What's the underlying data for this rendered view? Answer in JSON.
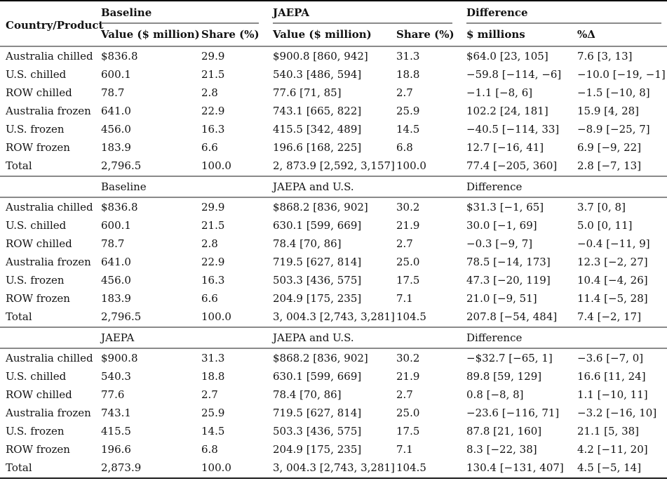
{
  "table": {
    "header": {
      "country_product": "Country/Product",
      "groups": [
        {
          "label": "Baseline",
          "subcols": [
            "Value ($ million)",
            "Share (%)"
          ]
        },
        {
          "label": "JAEPA",
          "subcols": [
            "Value ($ million)",
            "Share (%)"
          ]
        },
        {
          "label": "Difference",
          "subcols": [
            "$ millions",
            "%Δ"
          ]
        }
      ]
    },
    "sections": [
      {
        "scenario_labels": null,
        "rows": [
          {
            "label": "Australia chilled",
            "cells": [
              "$836.8",
              "29.9",
              "$900.8 [860, 942]",
              "31.3",
              "$64.0 [23, 105]",
              "7.6 [3, 13]"
            ]
          },
          {
            "label": "U.S. chilled",
            "cells": [
              "600.1",
              "21.5",
              "540.3 [486, 594]",
              "18.8",
              "−59.8 [−114, −6]",
              "−10.0 [−19, −1]"
            ]
          },
          {
            "label": "ROW chilled",
            "cells": [
              "78.7",
              "2.8",
              "77.6 [71, 85]",
              "2.7",
              "−1.1 [−8, 6]",
              "−1.5 [−10, 8]"
            ]
          },
          {
            "label": "Australia frozen",
            "cells": [
              "641.0",
              "22.9",
              "743.1 [665, 822]",
              "25.9",
              "102.2 [24, 181]",
              "15.9 [4, 28]"
            ]
          },
          {
            "label": "U.S. frozen",
            "cells": [
              "456.0",
              "16.3",
              "415.5 [342, 489]",
              "14.5",
              "−40.5 [−114, 33]",
              "−8.9 [−25, 7]"
            ]
          },
          {
            "label": "ROW frozen",
            "cells": [
              "183.9",
              "6.6",
              "196.6 [168, 225]",
              "6.8",
              "12.7 [−16, 41]",
              "6.9 [−9, 22]"
            ]
          },
          {
            "label": "Total",
            "cells": [
              "2,796.5",
              "100.0",
              "2, 873.9 [2,592, 3,157]",
              "100.0",
              "77.4 [−205, 360]",
              "2.8 [−7, 13]"
            ]
          }
        ]
      },
      {
        "scenario_labels": [
          "Baseline",
          "JAEPA and U.S.",
          "Difference"
        ],
        "rows": [
          {
            "label": "Australia chilled",
            "cells": [
              "$836.8",
              "29.9",
              "$868.2 [836, 902]",
              "30.2",
              "$31.3 [−1, 65]",
              "3.7 [0, 8]"
            ]
          },
          {
            "label": "U.S. chilled",
            "cells": [
              "600.1",
              "21.5",
              "630.1 [599, 669]",
              "21.9",
              "30.0 [−1, 69]",
              "5.0 [0, 11]"
            ]
          },
          {
            "label": "ROW chilled",
            "cells": [
              "78.7",
              "2.8",
              "78.4 [70, 86]",
              "2.7",
              "−0.3 [−9, 7]",
              "−0.4 [−11, 9]"
            ]
          },
          {
            "label": "Australia frozen",
            "cells": [
              "641.0",
              "22.9",
              "719.5 [627, 814]",
              "25.0",
              "78.5 [−14, 173]",
              "12.3 [−2, 27]"
            ]
          },
          {
            "label": "U.S. frozen",
            "cells": [
              "456.0",
              "16.3",
              "503.3 [436, 575]",
              "17.5",
              "47.3 [−20, 119]",
              "10.4 [−4, 26]"
            ]
          },
          {
            "label": "ROW frozen",
            "cells": [
              "183.9",
              "6.6",
              "204.9 [175, 235]",
              "7.1",
              "21.0 [−9, 51]",
              "11.4 [−5, 28]"
            ]
          },
          {
            "label": "Total",
            "cells": [
              "2,796.5",
              "100.0",
              "3, 004.3 [2,743, 3,281]",
              "104.5",
              "207.8 [−54, 484]",
              "7.4 [−2, 17]"
            ]
          }
        ]
      },
      {
        "scenario_labels": [
          "JAEPA",
          "JAEPA and U.S.",
          "Difference"
        ],
        "rows": [
          {
            "label": "Australia chilled",
            "cells": [
              "$900.8",
              "31.3",
              "$868.2 [836, 902]",
              "30.2",
              "−$32.7 [−65, 1]",
              "−3.6 [−7, 0]"
            ]
          },
          {
            "label": "U.S. chilled",
            "cells": [
              "540.3",
              "18.8",
              "630.1 [599, 669]",
              "21.9",
              "89.8 [59, 129]",
              "16.6 [11, 24]"
            ]
          },
          {
            "label": "ROW chilled",
            "cells": [
              "77.6",
              "2.7",
              "78.4 [70, 86]",
              "2.7",
              "0.8 [−8, 8]",
              "1.1 [−10, 11]"
            ]
          },
          {
            "label": "Australia frozen",
            "cells": [
              "743.1",
              "25.9",
              "719.5 [627, 814]",
              "25.0",
              "−23.6 [−116, 71]",
              "−3.2 [−16, 10]"
            ]
          },
          {
            "label": "U.S. frozen",
            "cells": [
              "415.5",
              "14.5",
              "503.3 [436, 575]",
              "17.5",
              "87.8 [21, 160]",
              "21.1 [5, 38]"
            ]
          },
          {
            "label": "ROW frozen",
            "cells": [
              "196.6",
              "6.8",
              "204.9 [175, 235]",
              "7.1",
              "8.3 [−22, 38]",
              "4.2 [−11, 20]"
            ]
          },
          {
            "label": "Total",
            "cells": [
              "2,873.9",
              "100.0",
              "3, 004.3 [2,743, 3,281]",
              "104.5",
              "130.4 [−131, 407]",
              "4.5 [−5, 14]"
            ]
          }
        ]
      }
    ]
  }
}
